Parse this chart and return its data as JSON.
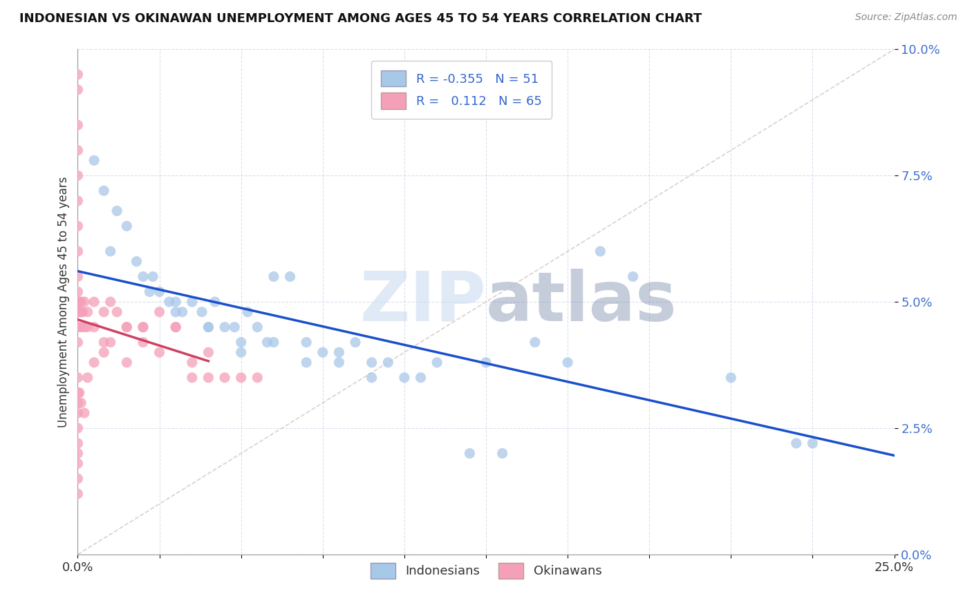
{
  "title": "INDONESIAN VS OKINAWAN UNEMPLOYMENT AMONG AGES 45 TO 54 YEARS CORRELATION CHART",
  "source": "Source: ZipAtlas.com",
  "xlim": [
    0.0,
    25.0
  ],
  "ylim": [
    0.0,
    10.0
  ],
  "ylabel": "Unemployment Among Ages 45 to 54 years",
  "legend_labels": [
    "Indonesians",
    "Okinawans"
  ],
  "blue_R": "-0.355",
  "blue_N": "51",
  "pink_R": "0.112",
  "pink_N": "65",
  "blue_color": "#a8c8e8",
  "pink_color": "#f4a0b8",
  "blue_line_color": "#1a4fcc",
  "pink_line_color": "#d04060",
  "watermark": "ZIPatlas",
  "indo_x": [
    0.5,
    0.8,
    1.2,
    1.5,
    1.8,
    2.0,
    2.3,
    2.5,
    2.8,
    3.0,
    3.2,
    3.5,
    3.8,
    4.0,
    4.2,
    4.5,
    4.8,
    5.0,
    5.2,
    5.5,
    5.8,
    6.0,
    6.5,
    7.0,
    7.5,
    8.0,
    8.5,
    9.0,
    9.5,
    10.0,
    11.0,
    12.0,
    13.0,
    14.0,
    15.0,
    17.0,
    20.0,
    22.5,
    1.0,
    2.2,
    3.0,
    4.0,
    5.0,
    6.0,
    7.0,
    8.0,
    9.0,
    10.5,
    12.5,
    16.0,
    22.0
  ],
  "indo_y": [
    7.8,
    7.2,
    6.8,
    6.5,
    5.8,
    5.5,
    5.5,
    5.2,
    5.0,
    5.0,
    4.8,
    5.0,
    4.8,
    4.5,
    5.0,
    4.5,
    4.5,
    4.2,
    4.8,
    4.5,
    4.2,
    5.5,
    5.5,
    4.2,
    4.0,
    4.0,
    4.2,
    3.8,
    3.8,
    3.5,
    3.8,
    2.0,
    2.0,
    4.2,
    3.8,
    5.5,
    3.5,
    2.2,
    6.0,
    5.2,
    4.8,
    4.5,
    4.0,
    4.2,
    3.8,
    3.8,
    3.5,
    3.5,
    3.8,
    6.0,
    2.2
  ],
  "okn_x": [
    0.0,
    0.0,
    0.0,
    0.0,
    0.0,
    0.0,
    0.0,
    0.0,
    0.0,
    0.0,
    0.0,
    0.0,
    0.0,
    0.0,
    0.0,
    0.05,
    0.05,
    0.1,
    0.1,
    0.1,
    0.15,
    0.2,
    0.2,
    0.3,
    0.3,
    0.5,
    0.5,
    0.8,
    0.8,
    1.0,
    1.2,
    1.5,
    1.5,
    2.0,
    2.0,
    2.5,
    3.0,
    3.5,
    4.0,
    0.0,
    0.0,
    0.0,
    0.0,
    0.0,
    0.0,
    0.0,
    0.0,
    0.0,
    0.0,
    0.05,
    0.1,
    0.2,
    0.3,
    0.5,
    0.8,
    1.0,
    1.5,
    2.0,
    2.5,
    3.0,
    3.5,
    4.0,
    4.5,
    5.0,
    5.5
  ],
  "okn_y": [
    9.5,
    9.2,
    8.5,
    8.0,
    7.5,
    7.0,
    6.5,
    6.0,
    5.5,
    5.2,
    5.0,
    5.0,
    4.8,
    4.5,
    4.2,
    5.0,
    4.8,
    5.0,
    4.8,
    4.5,
    4.8,
    5.0,
    4.5,
    4.8,
    4.5,
    5.0,
    4.5,
    4.8,
    4.2,
    5.0,
    4.8,
    4.5,
    3.8,
    4.5,
    4.2,
    4.0,
    4.5,
    3.8,
    3.5,
    3.5,
    3.2,
    3.0,
    2.8,
    2.5,
    2.2,
    2.0,
    1.8,
    1.5,
    1.2,
    3.2,
    3.0,
    2.8,
    3.5,
    3.8,
    4.0,
    4.2,
    4.5,
    4.5,
    4.8,
    4.5,
    3.5,
    4.0,
    3.5,
    3.5,
    3.5
  ]
}
